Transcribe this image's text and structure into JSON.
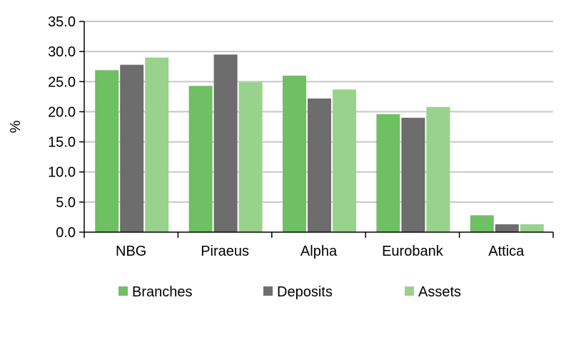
{
  "chart_data": {
    "type": "bar",
    "categories": [
      "NBG",
      "Piraeus",
      "Alpha",
      "Eurobank",
      "Attica"
    ],
    "series": [
      {
        "name": "Branches",
        "color": "#6fbf63",
        "values": [
          26.9,
          24.3,
          26.0,
          19.6,
          2.8
        ]
      },
      {
        "name": "Deposits",
        "color": "#6d6d6d",
        "values": [
          27.8,
          29.5,
          22.2,
          19.0,
          1.3
        ]
      },
      {
        "name": "Assets",
        "color": "#99d28c",
        "values": [
          29.0,
          24.9,
          23.7,
          20.8,
          1.3
        ]
      }
    ],
    "ylabel": "%",
    "ylim": [
      0,
      35
    ],
    "yticks": [
      "0.0",
      "5.0",
      "10.0",
      "15.0",
      "20.0",
      "25.0",
      "30.0",
      "35.0"
    ],
    "grid": true,
    "legend_position": "bottom"
  }
}
